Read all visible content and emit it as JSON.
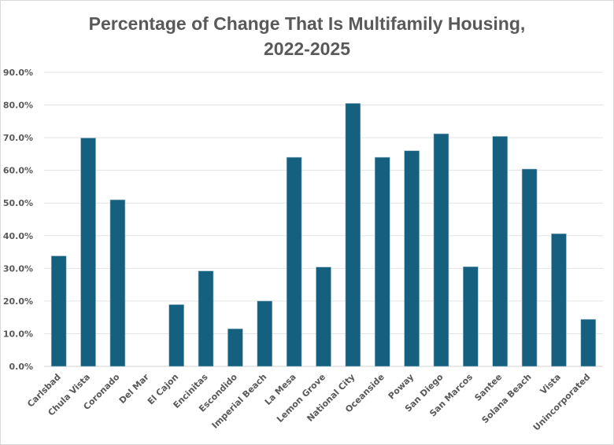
{
  "chart_data": {
    "type": "bar",
    "title_line1": "Percentage of Change That Is Multifamily Housing,",
    "title_line2": "2022-2025",
    "xlabel": "",
    "ylabel": "",
    "ylim": [
      0,
      90
    ],
    "yticks": [
      "0.0%",
      "10.0%",
      "20.0%",
      "30.0%",
      "40.0%",
      "50.0%",
      "60.0%",
      "70.0%",
      "80.0%",
      "90.0%"
    ],
    "grid": true,
    "legend": "none",
    "bar_color": "#16607f",
    "categories": [
      "Carlsbad",
      "Chula Vista",
      "Coronado",
      "Del Mar",
      "El Cajon",
      "Encinitas",
      "Escondido",
      "Imperial Beach",
      "La Mesa",
      "Lemon Grove",
      "National City",
      "Oceanside",
      "Poway",
      "San Diego",
      "San Marcos",
      "Santee",
      "Solana Beach",
      "Vista",
      "Unincorporated"
    ],
    "values": [
      33.8,
      69.9,
      51.0,
      0,
      18.9,
      29.2,
      11.5,
      20.0,
      64.0,
      30.4,
      80.5,
      64.0,
      66.0,
      71.2,
      30.5,
      70.4,
      60.4,
      40.6,
      14.4
    ]
  }
}
